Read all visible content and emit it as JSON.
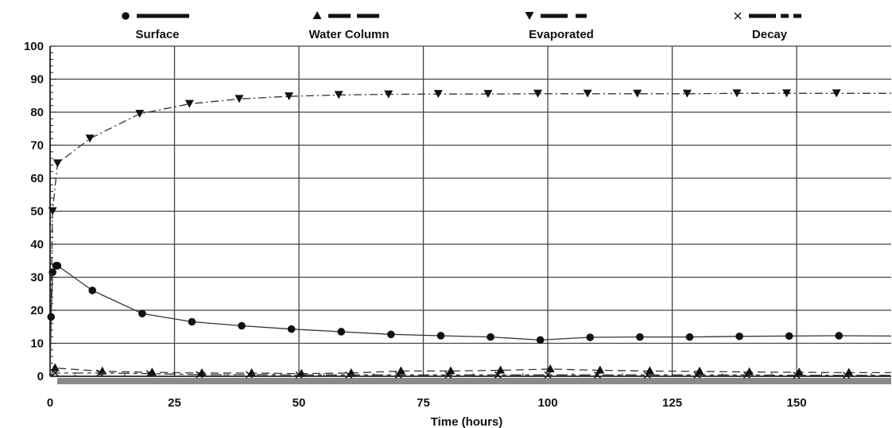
{
  "chart_data": {
    "type": "line",
    "title": "",
    "xlabel": "Time (hours)",
    "ylabel": "",
    "xlim": [
      0,
      169
    ],
    "ylim": [
      0,
      100
    ],
    "x_ticks": [
      0,
      25,
      50,
      75,
      100,
      125,
      150
    ],
    "y_ticks": [
      0,
      10,
      20,
      30,
      40,
      50,
      60,
      70,
      80,
      90,
      100
    ],
    "grid": true,
    "legend_position": "top",
    "series": [
      {
        "name": "Surface",
        "marker": "circle",
        "dash": "solid",
        "x": [
          0,
          0.2,
          0.5,
          1.2,
          1.5,
          8.5,
          18.5,
          28.5,
          38.5,
          48.5,
          58.5,
          68.5,
          78.5,
          88.5,
          98.5,
          108.5,
          118.5,
          128.5,
          138.5,
          148.5,
          158.5,
          169
        ],
        "y": [
          0,
          18,
          31.5,
          33.5,
          33.5,
          26,
          19,
          16.5,
          15.3,
          14.3,
          13.5,
          12.7,
          12.3,
          11.9,
          11,
          11.8,
          11.9,
          11.9,
          12.1,
          12.2,
          12.3,
          12.2
        ]
      },
      {
        "name": "Water Column",
        "marker": "triangle-up",
        "dash": "dash",
        "x": [
          0,
          1,
          10.5,
          20.5,
          30.5,
          40.5,
          50.5,
          60.5,
          70.5,
          80.5,
          90.5,
          100.5,
          110.5,
          120.5,
          130.5,
          140.5,
          150.5,
          160.5,
          169
        ],
        "y": [
          0,
          2.5,
          1.5,
          1.2,
          1,
          1,
          0.8,
          1,
          1.6,
          1.6,
          1.8,
          2.2,
          1.8,
          1.6,
          1.5,
          1.3,
          1.2,
          1.1,
          1.1
        ]
      },
      {
        "name": "Evaporated",
        "marker": "triangle-down",
        "dash": "dashdot",
        "x": [
          0,
          0.5,
          1.5,
          8,
          18,
          28,
          38,
          48,
          58,
          68,
          78,
          88,
          98,
          108,
          118,
          128,
          138,
          148,
          158,
          169
        ],
        "y": [
          0,
          50,
          64.5,
          72,
          79.5,
          82.5,
          84,
          84.8,
          85.2,
          85.4,
          85.5,
          85.5,
          85.6,
          85.6,
          85.6,
          85.6,
          85.7,
          85.7,
          85.7,
          85.7
        ]
      },
      {
        "name": "Decay",
        "marker": "cross",
        "dash": "long-short",
        "x": [
          0,
          1,
          10,
          20,
          30,
          40,
          50,
          60,
          70,
          80,
          90,
          100,
          110,
          120,
          130,
          140,
          150,
          160,
          169
        ],
        "y": [
          0,
          1,
          1,
          0.8,
          0.5,
          0.5,
          0.4,
          0.4,
          0.4,
          0.4,
          0.4,
          0.4,
          0.4,
          0.4,
          0.4,
          0.4,
          0.3,
          0.3,
          0.3
        ]
      }
    ]
  }
}
